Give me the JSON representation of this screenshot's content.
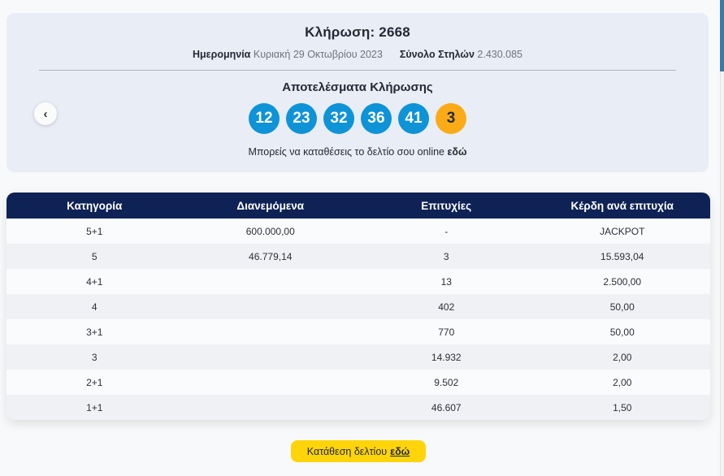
{
  "draw": {
    "title": "Κλήρωση: 2668",
    "date_label": "Ημερομηνία",
    "date_value": "Κυριακή 29 Οκτωβρίου 2023",
    "columns_label": "Σύνολο Στηλών",
    "columns_value": "2.430.085",
    "results_title": "Αποτελέσματα Κλήρωσης",
    "numbers": [
      "12",
      "23",
      "32",
      "36",
      "41"
    ],
    "bonus_number": "3",
    "online_text": "Μπορείς να καταθέσεις το δελτίο σου online",
    "online_link_label": "εδώ",
    "colors": {
      "number_ball": "#0e93d6",
      "bonus_ball": "#fbab18",
      "card_bg": "#e9edf5"
    }
  },
  "carousel": {
    "prev_icon": "‹"
  },
  "table": {
    "headers": [
      "Κατηγορία",
      "Διανεμόμενα",
      "Επιτυχίες",
      "Κέρδη ανά επιτυχία"
    ],
    "rows": [
      {
        "category": "5+1",
        "distributed": "600.000,00",
        "winners": "-",
        "prize": "JACKPOT"
      },
      {
        "category": "5",
        "distributed": "46.779,14",
        "winners": "3",
        "prize": "15.593,04"
      },
      {
        "category": "4+1",
        "distributed": "",
        "winners": "13",
        "prize": "2.500,00"
      },
      {
        "category": "4",
        "distributed": "",
        "winners": "402",
        "prize": "50,00"
      },
      {
        "category": "3+1",
        "distributed": "",
        "winners": "770",
        "prize": "50,00"
      },
      {
        "category": "3",
        "distributed": "",
        "winners": "14.932",
        "prize": "2,00"
      },
      {
        "category": "2+1",
        "distributed": "",
        "winners": "9.502",
        "prize": "2,00"
      },
      {
        "category": "1+1",
        "distributed": "",
        "winners": "46.607",
        "prize": "1,50"
      }
    ],
    "header_bg": "#0e2255"
  },
  "footer": {
    "deposit_text": "Κατάθεση δελτίου",
    "deposit_link_label": "εδώ",
    "button_color": "#ffd408"
  }
}
